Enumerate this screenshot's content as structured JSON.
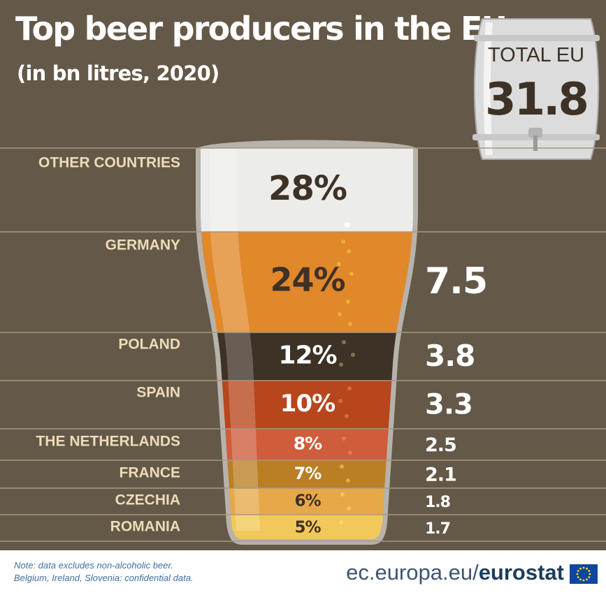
{
  "title": "Top beer producers in the EU",
  "subtitle": "(in bn litres, 2020)",
  "total": {
    "label": "TOTAL EU",
    "value": "31.8"
  },
  "colors": {
    "background": "#645848",
    "divider": "#a89880",
    "label": "#ecdcb8",
    "other": "#ececea",
    "germany": "#e0882a",
    "poland": "#3e3126",
    "spain": "#b8461c",
    "netherlands": "#cf5c3a",
    "france": "#ba7e24",
    "czechia": "#e6a848",
    "romania": "#f3c85a"
  },
  "chart_data": {
    "type": "bar",
    "title": "Top beer producers in the EU",
    "subtitle": "(in bn litres, 2020)",
    "categories": [
      "OTHER COUNTRIES",
      "GERMANY",
      "POLAND",
      "SPAIN",
      "THE NETHERLANDS",
      "FRANCE",
      "CZECHIA",
      "ROMANIA"
    ],
    "shares": [
      "28%",
      "24%",
      "12%",
      "10%",
      "8%",
      "7%",
      "6%",
      "5%"
    ],
    "values": [
      null,
      7.5,
      3.8,
      3.3,
      2.5,
      2.1,
      1.8,
      1.7
    ],
    "value_labels": [
      "",
      "7.5",
      "3.8",
      "3.3",
      "2.5",
      "2.1",
      "1.8",
      "1.7"
    ]
  },
  "footer": {
    "note_line1": "Note: data excludes non-alcoholic beer.",
    "note_line2": "Belgium, Ireland, Slovenia: confidential data.",
    "source_plain": "ec.europa.eu/",
    "source_bold": "eurostat"
  }
}
